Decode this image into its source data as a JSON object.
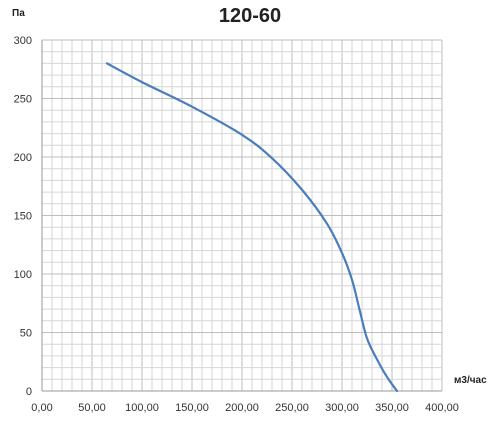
{
  "chart_data": {
    "type": "line",
    "title": "120-60",
    "xlabel": "м3/час",
    "ylabel": "Па",
    "xlim": [
      0,
      400
    ],
    "ylim": [
      0,
      300
    ],
    "x_ticks": [
      "0,00",
      "50,00",
      "100,00",
      "150,00",
      "200,00",
      "250,00",
      "300,00",
      "350,00",
      "400,00"
    ],
    "y_ticks": [
      "0",
      "50",
      "100",
      "150",
      "200",
      "250",
      "300"
    ],
    "grid": true,
    "series": [
      {
        "color": "#4a7ebb",
        "points": [
          [
            65,
            280
          ],
          [
            100,
            264
          ],
          [
            150,
            243
          ],
          [
            200,
            219
          ],
          [
            230,
            199
          ],
          [
            260,
            172
          ],
          [
            285,
            143
          ],
          [
            300,
            118
          ],
          [
            310,
            95
          ],
          [
            318,
            68
          ],
          [
            325,
            45
          ],
          [
            335,
            27
          ],
          [
            345,
            12
          ],
          [
            355,
            0
          ]
        ]
      }
    ]
  }
}
